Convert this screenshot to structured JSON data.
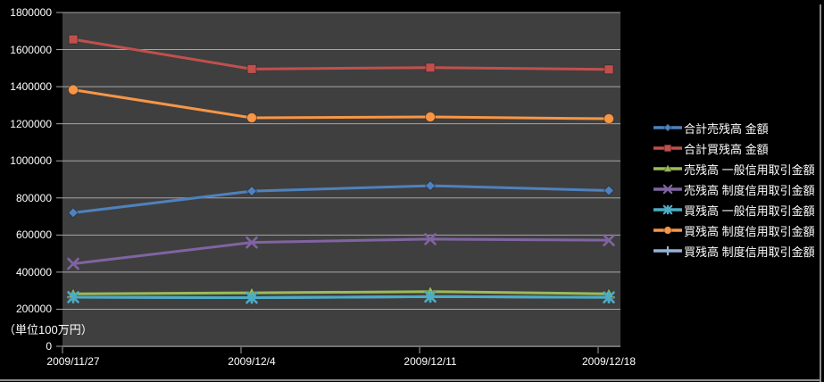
{
  "chart_data": {
    "type": "line",
    "title": "",
    "xlabel": "",
    "ylabel": "",
    "unit_label": "（単位100万円）",
    "categories": [
      "2009/11/27",
      "2009/12/4",
      "2009/12/11",
      "2009/12/18"
    ],
    "series": [
      {
        "name": "合計売残高 金額",
        "color": "#4F81BD",
        "marker": "diamond",
        "values": [
          720000,
          837000,
          866000,
          840000
        ]
      },
      {
        "name": "合計買残高 金額",
        "color": "#C0504D",
        "marker": "square",
        "values": [
          1655000,
          1495000,
          1503000,
          1493000
        ]
      },
      {
        "name": "売残高 一般信用取引金額",
        "color": "#9BBB59",
        "marker": "triangle",
        "values": [
          283000,
          288000,
          295000,
          283000
        ]
      },
      {
        "name": "売残高 制度信用取引金額",
        "color": "#8064A2",
        "marker": "x",
        "values": [
          445000,
          560000,
          578000,
          572000
        ]
      },
      {
        "name": "買残高 一般信用取引金額",
        "color": "#4BACC6",
        "marker": "asterisk",
        "values": [
          265000,
          262000,
          268000,
          264000
        ]
      },
      {
        "name": "買残高 制度信用取引金額",
        "color": "#F79646",
        "marker": "circle",
        "values": [
          1383000,
          1232000,
          1237000,
          1227000
        ]
      },
      {
        "name": "買残高 制度信用取引金額",
        "color": "#95B3D7",
        "marker": "plus",
        "values": [
          265000,
          262000,
          268000,
          264000
        ]
      }
    ],
    "ylim": [
      0,
      1800000
    ],
    "ytick_step": 200000,
    "grid": true,
    "legend_position": "right",
    "page_bg": "#000000",
    "plot_bg": "#3F3F3F",
    "gridline_color": "#A6A6A6",
    "text_color": "#FFFFFF"
  }
}
